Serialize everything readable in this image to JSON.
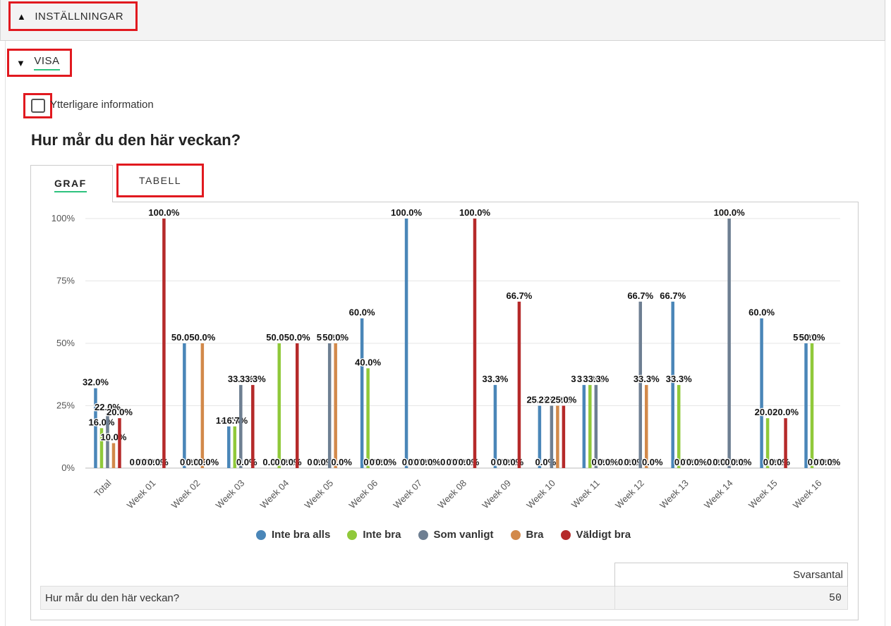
{
  "settings": {
    "label": "INSTÄLLNINGAR",
    "toggle_icon": "▲"
  },
  "display": {
    "label": "VISA",
    "toggle_icon": "▼"
  },
  "additional_info": {
    "label": "Ytterligare information",
    "checked": false
  },
  "question": {
    "title": "Hur mår du den här veckan?"
  },
  "tabs": [
    {
      "label": "GRAF",
      "active": true
    },
    {
      "label": "TABELL",
      "active": false
    }
  ],
  "colors": {
    "Inte bra alls": "#4a86b8",
    "Inte bra": "#90c93a",
    "Som vanligt": "#6e7f92",
    "Bra": "#d2894a",
    "Väldigt bra": "#b52a2a",
    "accent": "#2ec27e",
    "highlight": "#e1191f"
  },
  "chart_data": {
    "type": "bar",
    "categories": [
      "Total",
      "Week 01",
      "Week 02",
      "Week 03",
      "Week 04",
      "Week 05",
      "Week 06",
      "Week 07",
      "Week 08",
      "Week 09",
      "Week 10",
      "Week 11",
      "Week 12",
      "Week 13",
      "Week 14",
      "Week 15",
      "Week 16"
    ],
    "series": [
      {
        "name": "Inte bra alls",
        "values": [
          32.0,
          0,
          50.0,
          16.7,
          0,
          0,
          60.0,
          100.0,
          0,
          33.3,
          25.0,
          33.3,
          0,
          66.7,
          0,
          60.0,
          50.0
        ]
      },
      {
        "name": "Inte bra",
        "values": [
          16.0,
          0,
          0,
          16.7,
          50.0,
          0,
          40.0,
          0,
          0,
          0,
          0,
          33.3,
          0,
          33.3,
          0,
          20.0,
          50.0
        ]
      },
      {
        "name": "Som vanligt",
        "values": [
          22.0,
          0,
          0,
          33.3,
          0,
          50.0,
          0,
          0,
          0,
          0,
          25.0,
          33.3,
          66.7,
          0,
          100.0,
          0,
          0
        ]
      },
      {
        "name": "Bra",
        "values": [
          10.0,
          0,
          50.0,
          0,
          0,
          50.0,
          0,
          0,
          0,
          0,
          25.0,
          0,
          33.3,
          0,
          0,
          0,
          0
        ]
      },
      {
        "name": "Väldigt bra",
        "values": [
          20.0,
          100.0,
          0,
          33.3,
          50.0,
          0,
          0,
          0,
          100.0,
          66.7,
          25.0,
          0,
          0,
          0,
          0,
          20.0,
          0
        ]
      }
    ],
    "yticks": [
      "0%",
      "25%",
      "50%",
      "75%",
      "100%"
    ],
    "ylim": [
      0,
      100
    ],
    "grid": true,
    "legend_position": "bottom"
  },
  "summary_table": {
    "column_header": "Svarsantal",
    "row_label": "Hur mår du den här veckan?",
    "value": "50"
  }
}
